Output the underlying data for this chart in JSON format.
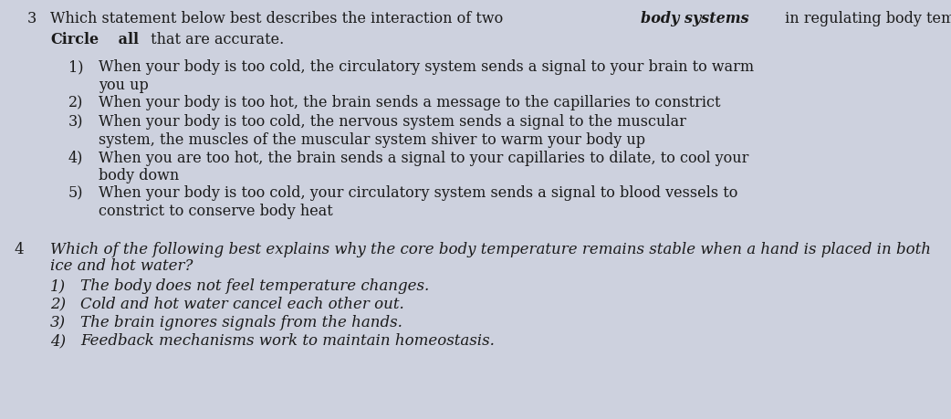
{
  "bg_color": "#cdd1de",
  "text_color": "#1a1a1a",
  "font_size": 11.5,
  "font_size_q4": 12.0,
  "q3_num": "3",
  "q3_part1": "Which statement below best describes the interaction of two ",
  "q3_part2_bold_italic": "body systems",
  "q3_part3": " in regulating body temperature?",
  "circle_bold": "Circle",
  "all_bold": " all",
  "accurate_normal": " that are accurate.",
  "q3_items": [
    [
      "1)",
      "When your body is too cold, the circulatory system sends a signal to your brain to warm",
      "you up"
    ],
    [
      "2)",
      "When your body is too hot, the brain sends a message to the capillaries to constrict",
      ""
    ],
    [
      "3)",
      "When your body is too cold, the nervous system sends a signal to the muscular",
      "system, the muscles of the muscular system shiver to warm your body up"
    ],
    [
      "4)",
      "When you are too hot, the brain sends a signal to your capillaries to dilate, to cool your",
      "body down"
    ],
    [
      "5)",
      "When your body is too cold, your circulatory system sends a signal to blood vessels to",
      "constrict to conserve body heat"
    ]
  ],
  "q4_num": "4",
  "q4_line1": "Which of the following best explains why the core body temperature remains stable when a hand is placed in both",
  "q4_line2": "ice and hot water?",
  "q4_items": [
    [
      "1)",
      "The body does not feel temperature changes."
    ],
    [
      "2)",
      "Cold and hot water cancel each other out."
    ],
    [
      "3)",
      "The brain ignores signals from the hands."
    ],
    [
      "4)",
      "Feedback mechanisms work to maintain homeostasis."
    ]
  ]
}
